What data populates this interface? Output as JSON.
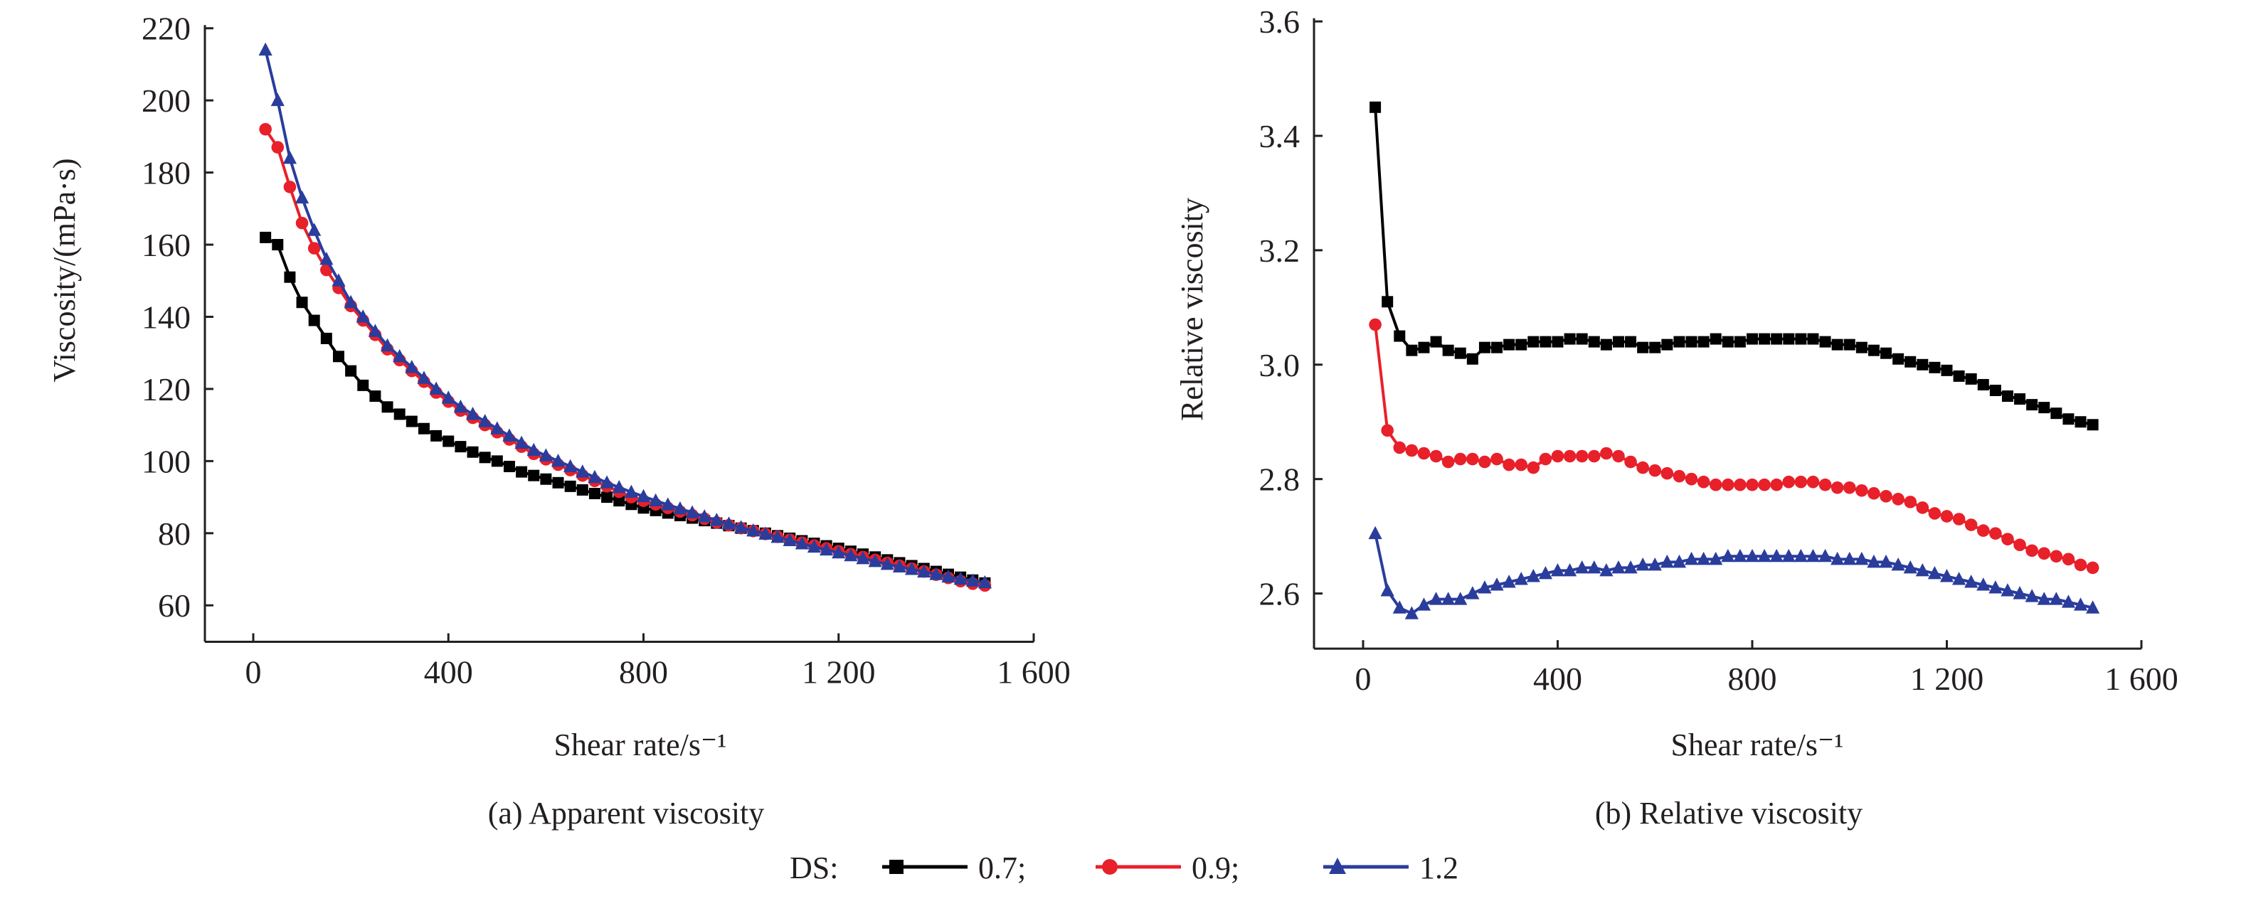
{
  "chart_data": [
    {
      "type": "line",
      "caption": "(a) Apparent viscosity",
      "xlabel": "Shear rate/s⁻¹",
      "ylabel": "Viscosity/(mPa·s)",
      "xlim": [
        -100,
        1600
      ],
      "ylim": [
        50,
        220
      ],
      "xticks": [
        0,
        400,
        800,
        1200,
        1600
      ],
      "xtick_labels": [
        "0",
        "400",
        "800",
        "1 200",
        "1 600"
      ],
      "yticks": [
        60,
        80,
        100,
        120,
        140,
        160,
        180,
        200,
        220
      ],
      "ytick_labels": [
        "60",
        "80",
        "100",
        "120",
        "140",
        "160",
        "180",
        "200",
        "220"
      ],
      "grid": false,
      "x": [
        25,
        50,
        75,
        100,
        125,
        150,
        175,
        200,
        225,
        250,
        275,
        300,
        325,
        350,
        375,
        400,
        425,
        450,
        475,
        500,
        525,
        550,
        575,
        600,
        625,
        650,
        675,
        700,
        725,
        750,
        775,
        800,
        825,
        850,
        875,
        900,
        925,
        950,
        975,
        1000,
        1025,
        1050,
        1075,
        1100,
        1125,
        1150,
        1175,
        1200,
        1225,
        1250,
        1275,
        1300,
        1325,
        1350,
        1375,
        1400,
        1425,
        1450,
        1475,
        1500
      ],
      "series": [
        {
          "name": "0.7",
          "color": "#000000",
          "marker": "square",
          "values": [
            162,
            160,
            151,
            144,
            139,
            134,
            129,
            125,
            121,
            118,
            115,
            113,
            111,
            109,
            107,
            105.5,
            104,
            102.5,
            101,
            100,
            98.5,
            97,
            96,
            95,
            94,
            93,
            92,
            91,
            90,
            89,
            88,
            87,
            86.3,
            85.6,
            84.9,
            84.2,
            83.5,
            82.8,
            82.1,
            81.4,
            80.7,
            80,
            79.3,
            78.6,
            77.9,
            77.2,
            76.5,
            75.8,
            75,
            74.2,
            73.4,
            72.6,
            71.8,
            71,
            70.2,
            69.4,
            68.6,
            67.8,
            67,
            66.2
          ]
        },
        {
          "name": "0.9",
          "color": "#e8202a",
          "marker": "circle",
          "values": [
            192,
            187,
            176,
            166,
            159,
            153,
            148,
            143,
            139,
            135,
            131,
            128,
            125,
            122,
            119,
            116.5,
            114,
            112,
            110,
            108,
            106,
            104,
            102,
            100.5,
            99,
            97.5,
            96,
            94.5,
            93,
            91.5,
            90,
            89,
            88,
            87,
            86,
            85,
            84,
            83,
            82.2,
            81.4,
            80.6,
            79.8,
            79,
            78.2,
            77.4,
            76.6,
            75.8,
            75,
            74.2,
            73.4,
            72.6,
            71.8,
            71,
            70.2,
            69.4,
            68.5,
            67.6,
            66.7,
            66,
            65.5
          ]
        },
        {
          "name": "1.2",
          "color": "#2a3d9c",
          "marker": "triangle",
          "values": [
            214,
            200,
            184,
            173,
            164,
            156,
            150,
            144,
            140,
            136,
            132,
            129,
            126,
            123,
            120,
            117.5,
            115,
            113,
            111,
            109,
            107,
            105,
            103,
            101.5,
            100,
            98.5,
            97,
            95.5,
            94,
            92.7,
            91.4,
            90.2,
            89,
            87.9,
            86.8,
            85.7,
            84.6,
            83.6,
            82.6,
            81.6,
            80.7,
            79.8,
            78.9,
            78,
            77.1,
            76.2,
            75.4,
            74.6,
            73.8,
            73,
            72.2,
            71.4,
            70.7,
            70,
            69.3,
            68.6,
            67.9,
            67.3,
            66.8,
            66.3
          ]
        }
      ]
    },
    {
      "type": "line",
      "caption": "(b)  Relative viscosity",
      "xlabel": "Shear rate/s⁻¹",
      "ylabel": "Relative viscosity",
      "xlim": [
        -100,
        1600
      ],
      "ylim": [
        2.5,
        3.6
      ],
      "xticks": [
        0,
        400,
        800,
        1200,
        1600
      ],
      "xtick_labels": [
        "0",
        "400",
        "800",
        "1 200",
        "1 600"
      ],
      "yticks": [
        2.6,
        2.8,
        3.0,
        3.2,
        3.4,
        3.6
      ],
      "ytick_labels": [
        "2.6",
        "2.8",
        "3.0",
        "3.2",
        "3.4",
        "3.6"
      ],
      "grid": false,
      "x": [
        25,
        50,
        75,
        100,
        125,
        150,
        175,
        200,
        225,
        250,
        275,
        300,
        325,
        350,
        375,
        400,
        425,
        450,
        475,
        500,
        525,
        550,
        575,
        600,
        625,
        650,
        675,
        700,
        725,
        750,
        775,
        800,
        825,
        850,
        875,
        900,
        925,
        950,
        975,
        1000,
        1025,
        1050,
        1075,
        1100,
        1125,
        1150,
        1175,
        1200,
        1225,
        1250,
        1275,
        1300,
        1325,
        1350,
        1375,
        1400,
        1425,
        1450,
        1475,
        1500
      ],
      "series": [
        {
          "name": "0.7",
          "color": "#000000",
          "marker": "square",
          "values": [
            3.45,
            3.11,
            3.05,
            3.025,
            3.03,
            3.04,
            3.025,
            3.02,
            3.01,
            3.03,
            3.03,
            3.035,
            3.035,
            3.04,
            3.04,
            3.04,
            3.045,
            3.045,
            3.04,
            3.035,
            3.04,
            3.04,
            3.03,
            3.03,
            3.035,
            3.04,
            3.04,
            3.04,
            3.045,
            3.04,
            3.04,
            3.045,
            3.045,
            3.045,
            3.045,
            3.045,
            3.045,
            3.04,
            3.035,
            3.035,
            3.03,
            3.025,
            3.02,
            3.01,
            3.005,
            3.0,
            2.995,
            2.99,
            2.98,
            2.975,
            2.965,
            2.955,
            2.945,
            2.94,
            2.93,
            2.925,
            2.915,
            2.905,
            2.9,
            2.895
          ]
        },
        {
          "name": "0.9",
          "color": "#e8202a",
          "marker": "circle",
          "values": [
            3.07,
            2.885,
            2.855,
            2.85,
            2.845,
            2.84,
            2.83,
            2.835,
            2.835,
            2.83,
            2.835,
            2.825,
            2.825,
            2.82,
            2.835,
            2.84,
            2.84,
            2.84,
            2.84,
            2.845,
            2.84,
            2.83,
            2.82,
            2.815,
            2.81,
            2.805,
            2.8,
            2.795,
            2.79,
            2.79,
            2.79,
            2.79,
            2.79,
            2.79,
            2.795,
            2.795,
            2.795,
            2.79,
            2.785,
            2.785,
            2.78,
            2.775,
            2.77,
            2.765,
            2.76,
            2.75,
            2.74,
            2.735,
            2.73,
            2.72,
            2.71,
            2.705,
            2.695,
            2.685,
            2.675,
            2.67,
            2.665,
            2.66,
            2.65,
            2.645
          ]
        },
        {
          "name": "1.2",
          "color": "#2a3d9c",
          "marker": "triangle",
          "values": [
            2.705,
            2.605,
            2.575,
            2.565,
            2.58,
            2.59,
            2.59,
            2.59,
            2.6,
            2.61,
            2.615,
            2.62,
            2.625,
            2.63,
            2.635,
            2.64,
            2.64,
            2.645,
            2.645,
            2.64,
            2.645,
            2.645,
            2.65,
            2.65,
            2.655,
            2.655,
            2.66,
            2.66,
            2.66,
            2.665,
            2.665,
            2.665,
            2.665,
            2.665,
            2.665,
            2.665,
            2.665,
            2.665,
            2.66,
            2.66,
            2.66,
            2.655,
            2.655,
            2.65,
            2.645,
            2.64,
            2.635,
            2.63,
            2.625,
            2.62,
            2.615,
            2.61,
            2.605,
            2.6,
            2.595,
            2.59,
            2.59,
            2.585,
            2.58,
            2.575
          ]
        }
      ]
    }
  ],
  "legend": {
    "title": "DS:",
    "placement": "bottom-center",
    "entries": [
      {
        "label": "0.7;",
        "color": "#000000",
        "marker": "square"
      },
      {
        "label": "0.9;",
        "color": "#e8202a",
        "marker": "circle"
      },
      {
        "label": "1.2",
        "color": "#2a3d9c",
        "marker": "triangle"
      }
    ]
  }
}
